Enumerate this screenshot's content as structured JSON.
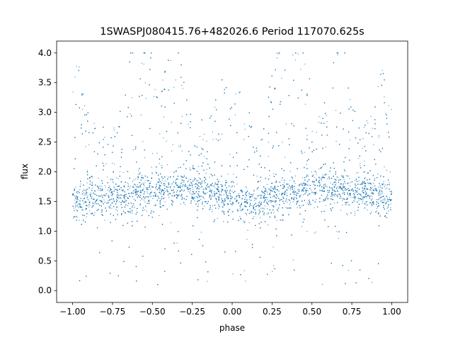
{
  "chart_data": {
    "type": "scatter",
    "title": "1SWASPJ080415.76+482026.6 Period 117070.625s",
    "xlabel": "phase",
    "ylabel": "flux",
    "xlim": [
      -1.1,
      1.1
    ],
    "ylim": [
      -0.2,
      4.2
    ],
    "xticks": [
      -1.0,
      -0.75,
      -0.5,
      -0.25,
      0.0,
      0.25,
      0.5,
      0.75,
      1.0
    ],
    "xtick_labels": [
      "−1.00",
      "−0.75",
      "−0.50",
      "−0.25",
      "0.00",
      "0.25",
      "0.50",
      "0.75",
      "1.00"
    ],
    "yticks": [
      0.0,
      0.5,
      1.0,
      1.5,
      2.0,
      2.5,
      3.0,
      3.5,
      4.0
    ],
    "ytick_labels": [
      "0.0",
      "0.5",
      "1.0",
      "1.5",
      "2.0",
      "2.5",
      "3.0",
      "3.5",
      "4.0"
    ],
    "grid": false,
    "legend": "none",
    "marker_color": "#1f77b4",
    "series": [
      {
        "x_range": [
          -1.0,
          1.0
        ],
        "baseline_flux_profile": {
          "phase": [
            -1.0,
            -0.75,
            -0.5,
            -0.3,
            -0.1,
            0.0,
            0.15,
            0.3,
            0.5,
            0.7,
            0.9,
            1.0
          ],
          "flux": [
            1.55,
            1.55,
            1.7,
            1.75,
            1.6,
            1.55,
            1.5,
            1.6,
            1.75,
            1.7,
            1.6,
            1.55
          ]
        },
        "flare_flux_peaks": {
          "phase": [
            -0.97,
            -0.62,
            -0.55,
            -0.37,
            -0.05,
            0.04,
            0.3,
            0.42,
            0.67,
            0.95
          ],
          "flux": [
            2.6,
            3.2,
            3.6,
            3.5,
            2.6,
            2.5,
            3.5,
            3.5,
            3.6,
            2.6
          ]
        },
        "flux_min": 0.0,
        "flux_max": 4.0
      }
    ]
  }
}
